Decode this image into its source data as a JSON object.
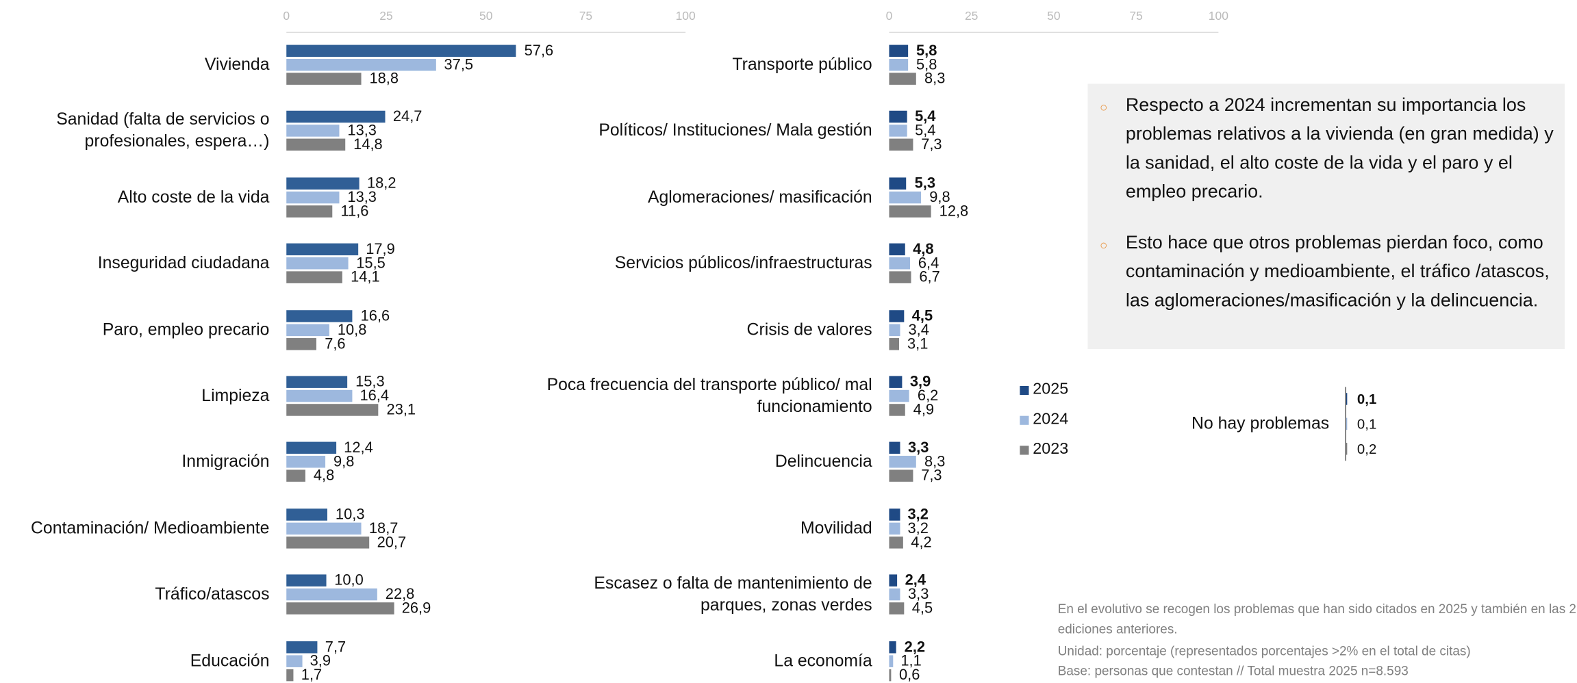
{
  "chart_data": [
    {
      "type": "barh",
      "xlim": [
        0,
        100
      ],
      "xticks": [
        0,
        25,
        50,
        75,
        100
      ],
      "categories": [
        "Vivienda",
        "Sanidad (falta de servicios o profesionales, espera…)",
        "Alto coste de la vida",
        "Inseguridad ciudadana",
        "Paro, empleo precario",
        "Limpieza",
        "Inmigración",
        "Contaminación/ Medioambiente",
        "Tráfico/atascos",
        "Educación"
      ],
      "series": [
        {
          "name": "2025",
          "color": "#305f96",
          "values": [
            57.6,
            24.7,
            18.2,
            17.9,
            16.6,
            15.3,
            12.4,
            10.3,
            10.0,
            7.7
          ],
          "value_labels": [
            "57,6",
            "24,7",
            "18,2",
            "17,9",
            "16,6",
            "15,3",
            "12,4",
            "10,3",
            "10,0",
            "7,7"
          ]
        },
        {
          "name": "2024",
          "color": "#9db8de",
          "values": [
            37.5,
            13.3,
            13.3,
            15.5,
            10.8,
            16.4,
            9.8,
            18.7,
            22.8,
            3.9
          ],
          "value_labels": [
            "37,5",
            "13,3",
            "13,3",
            "15,5",
            "10,8",
            "16,4",
            "9,8",
            "18,7",
            "22,8",
            "3,9"
          ]
        },
        {
          "name": "2023",
          "color": "#808080",
          "values": [
            18.8,
            14.8,
            11.6,
            14.1,
            7.6,
            23.1,
            4.8,
            20.7,
            26.9,
            1.7
          ],
          "value_labels": [
            "18,8",
            "14,8",
            "11,6",
            "14,1",
            "7,6",
            "23,1",
            "4,8",
            "20,7",
            "26,9",
            "1,7"
          ]
        }
      ]
    },
    {
      "type": "barh",
      "xlim": [
        0,
        100
      ],
      "xticks": [
        0,
        25,
        50,
        75,
        100
      ],
      "categories": [
        "Transporte público",
        "Políticos/ Instituciones/ Mala gestión",
        "Aglomeraciones/ masificación",
        "Servicios públicos/infraestructuras",
        "Crisis de valores",
        "Poca frecuencia del transporte público/ mal funcionamiento",
        "Delincuencia",
        "Movilidad",
        "Escasez o falta de mantenimiento de parques, zonas verdes",
        "La economía"
      ],
      "series": [
        {
          "name": "2025",
          "color": "#1f4a85",
          "values": [
            5.8,
            5.4,
            5.3,
            4.8,
            4.5,
            3.9,
            3.3,
            3.2,
            2.4,
            2.2
          ],
          "value_labels": [
            "5,8",
            "5,4",
            "5,3",
            "4,8",
            "4,5",
            "3,9",
            "3,3",
            "3,2",
            "2,4",
            "2,2"
          ]
        },
        {
          "name": "2024",
          "color": "#9db8de",
          "values": [
            5.8,
            5.4,
            9.8,
            6.4,
            3.4,
            6.2,
            8.3,
            3.2,
            3.3,
            1.1
          ],
          "value_labels": [
            "5,8",
            "5,4",
            "9,8",
            "6,4",
            "3,4",
            "6,2",
            "8,3",
            "3,2",
            "3,3",
            "1,1"
          ]
        },
        {
          "name": "2023",
          "color": "#808080",
          "values": [
            8.3,
            7.3,
            12.8,
            6.7,
            3.1,
            4.9,
            7.3,
            4.2,
            4.5,
            0.6
          ],
          "value_labels": [
            "8,3",
            "7,3",
            "12,8",
            "6,7",
            "3,1",
            "4,9",
            "7,3",
            "4,2",
            "4,5",
            "0,6"
          ]
        }
      ],
      "legend": "right"
    },
    {
      "type": "barh",
      "categories": [
        "No hay problemas"
      ],
      "series": [
        {
          "name": "2025",
          "color": "#1f4a85",
          "values": [
            0.1
          ],
          "value_labels": [
            "0,1"
          ]
        },
        {
          "name": "2024",
          "color": "#9db8de",
          "values": [
            0.1
          ],
          "value_labels": [
            "0,1"
          ]
        },
        {
          "name": "2023",
          "color": "#808080",
          "values": [
            0.2
          ],
          "value_labels": [
            "0,2"
          ]
        }
      ]
    }
  ],
  "notes": [
    "Respecto a 2024 incrementan su importancia los problemas relativos a la vivienda (en gran medida) y la sanidad, el alto coste de la vida y el paro y el empleo precario.",
    "Esto hace que otros problemas pierdan foco, como  contaminación y medioambiente, el tráfico /atascos, las aglomeraciones/masificación y la delincuencia."
  ],
  "footnotes": [
    "En el evolutivo se recogen los problemas que han sido citados en 2025 y también en las 2 ediciones anteriores.",
    "Unidad: porcentaje (representados porcentajes >2% en el total de citas)",
    "Base: personas que contestan // Total muestra 2025 n=8.593"
  ]
}
